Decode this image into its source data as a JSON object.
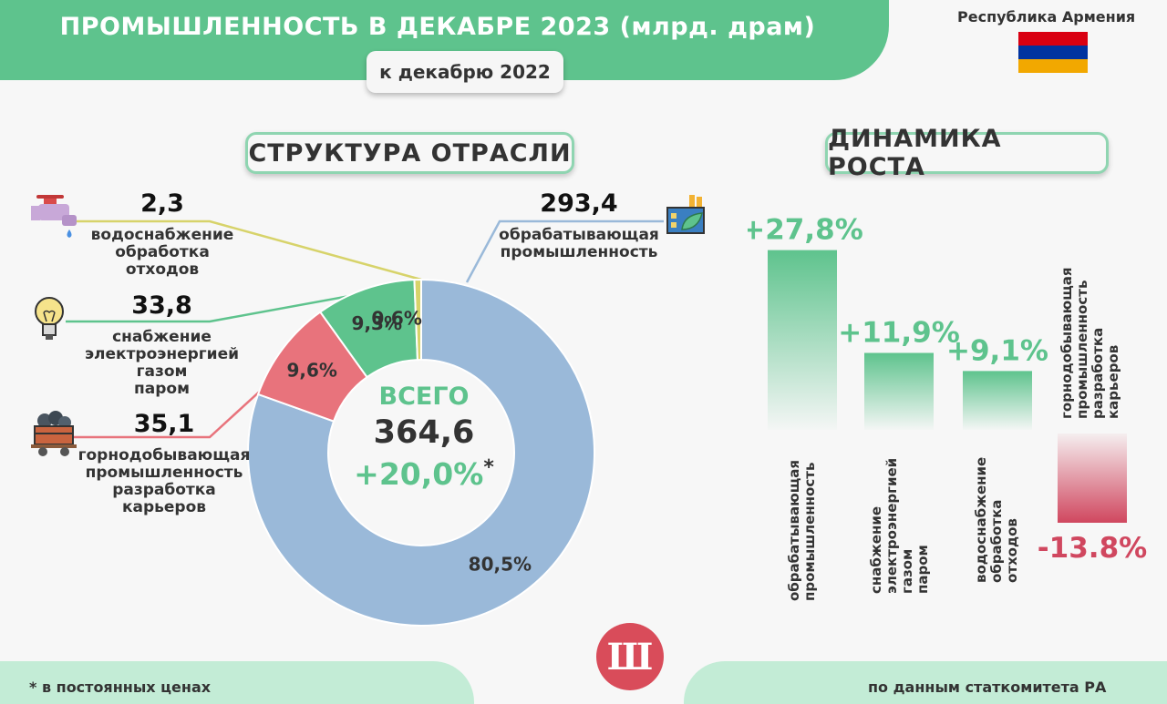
{
  "header": {
    "title": "ПРОМЫШЛЕННОСТЬ В ДЕКАБРЕ 2023 (млрд. драм)",
    "subtitle": "к декабрю 2022",
    "country": "Республика Армения"
  },
  "colors": {
    "green": "#5ec38d",
    "blue": "#9ab9d9",
    "red": "#e8737c",
    "yellow": "#d7d36a",
    "negative": "#d0475f"
  },
  "structure": {
    "title": "СТРУКТУРА ОТРАСЛИ",
    "total_label": "ВСЕГО",
    "total_value": "364,6",
    "total_growth": "+20,0%",
    "asterisk": "*"
  },
  "dynamics": {
    "title": "ДИНАМИКА РОСТА"
  },
  "chart_data": [
    {
      "type": "pie",
      "title": "СТРУКТУРА ОТРАСЛИ",
      "slices": [
        {
          "label": "обрабатывающая промышленность",
          "label_lines": [
            "обрабатывающая",
            "промышленность"
          ],
          "value": 293.4,
          "value_text": "293,4",
          "percent": 80.5,
          "percent_text": "80,5%",
          "color": "#9ab9d9",
          "icon": "factory-icon"
        },
        {
          "label": "горнодобывающая промышленность разработка карьеров",
          "label_lines": [
            "горнодобывающая",
            "промышленность",
            "разработка",
            "карьеров"
          ],
          "value": 35.1,
          "value_text": "35,1",
          "percent": 9.6,
          "percent_text": "9,6%",
          "color": "#e8737c",
          "icon": "mine-cart-icon"
        },
        {
          "label": "снабжение электроэнергией газом паром",
          "label_lines": [
            "снабжение",
            "электроэнергией",
            "газом",
            "паром"
          ],
          "value": 33.8,
          "value_text": "33,8",
          "percent": 9.3,
          "percent_text": "9,3%",
          "color": "#5ec38d",
          "icon": "light-bulb-icon"
        },
        {
          "label": "водоснабжение обработка отходов",
          "label_lines": [
            "водоснабжение",
            "обработка",
            "отходов"
          ],
          "value": 2.3,
          "value_text": "2,3",
          "percent": 0.6,
          "percent_text": "0,6%",
          "color": "#d7d36a",
          "icon": "water-tap-icon"
        }
      ]
    },
    {
      "type": "bar",
      "title": "ДИНАМИКА РОСТА",
      "categories": [
        "обрабатывающая промышленность",
        "снабжение электроэнергией газом паром",
        "водоснабжение обработка отходов",
        "горнодобывающая промышленность разработка карьеров"
      ],
      "category_lines": [
        [
          "обрабатывающая",
          "промышленность"
        ],
        [
          "снабжение",
          "электроэнергией",
          "газом",
          "паром"
        ],
        [
          "водоснабжение",
          "обработка",
          "отходов"
        ],
        [
          "горнодобывающая",
          "промышленность",
          "разработка",
          "карьеров"
        ]
      ],
      "values": [
        27.8,
        11.9,
        9.1,
        -13.8
      ],
      "value_labels": [
        "+27,8%",
        "+11,9%",
        "+9,1%",
        "-13.8%"
      ],
      "unit": "%"
    }
  ],
  "footer": {
    "note": "* в постоянных ценах",
    "source": "по данным статкомитета РА",
    "logo_text": "Ш"
  }
}
